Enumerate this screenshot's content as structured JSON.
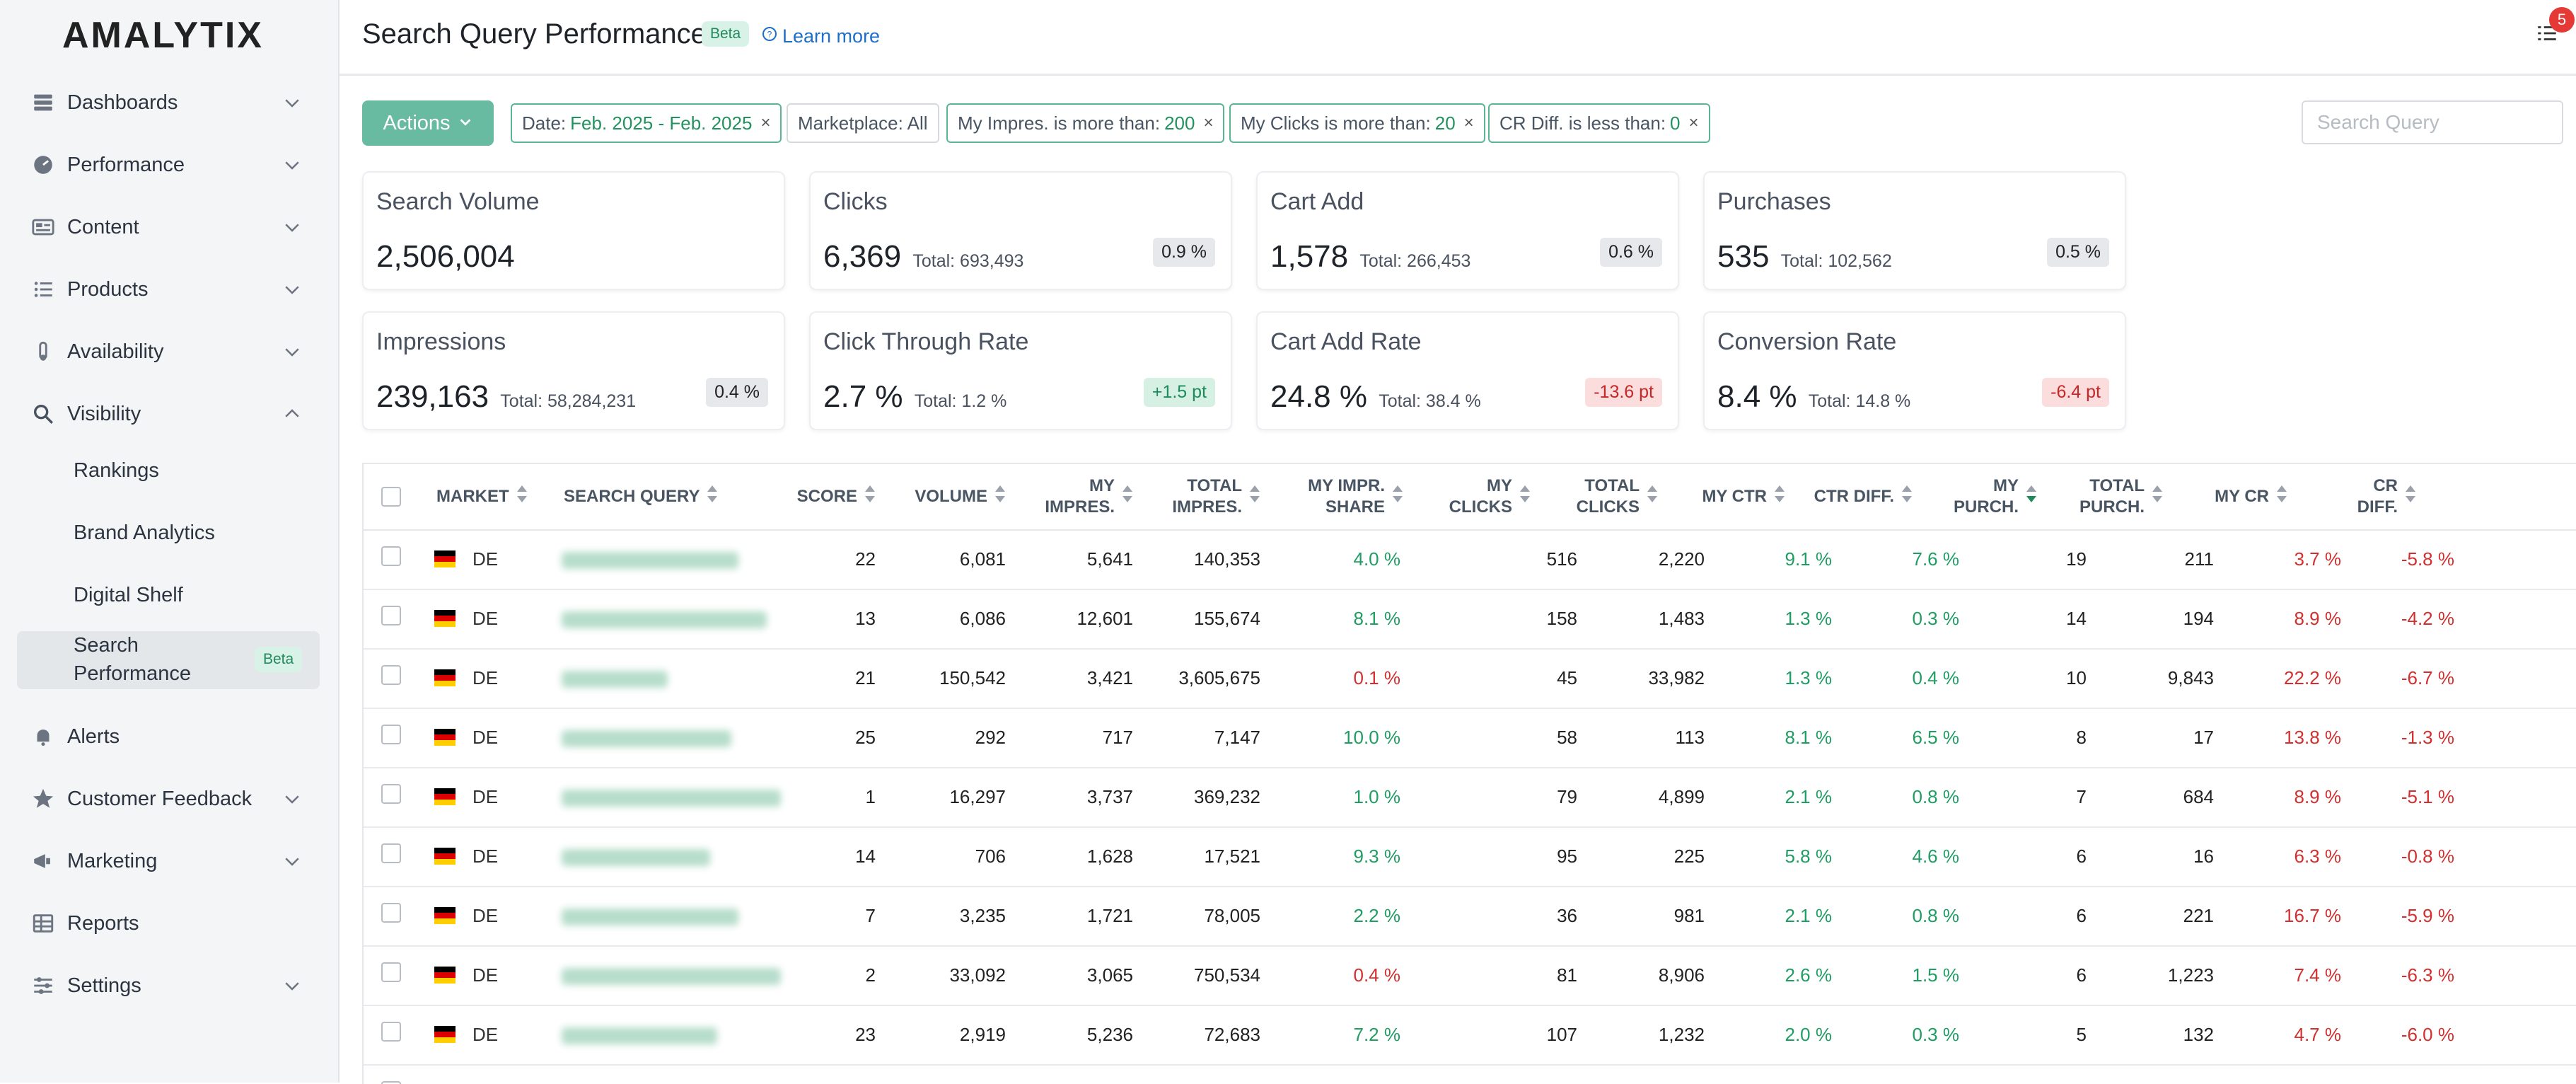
{
  "app": {
    "logo": "AMALYTIX"
  },
  "sidebar": {
    "items": [
      {
        "label": "Dashboards",
        "icon": "dashboard-icon"
      },
      {
        "label": "Performance",
        "icon": "performance-icon"
      },
      {
        "label": "Content",
        "icon": "content-icon"
      },
      {
        "label": "Products",
        "icon": "products-icon"
      },
      {
        "label": "Availability",
        "icon": "availability-icon"
      },
      {
        "label": "Visibility",
        "icon": "search-icon"
      },
      {
        "label": "Alerts",
        "icon": "bell-icon"
      },
      {
        "label": "Customer Feedback",
        "icon": "star-icon"
      },
      {
        "label": "Marketing",
        "icon": "megaphone-icon"
      },
      {
        "label": "Reports",
        "icon": "table-icon"
      },
      {
        "label": "Settings",
        "icon": "sliders-icon"
      }
    ],
    "visibility_sub": {
      "rankings": "Rankings",
      "brand_analytics": "Brand Analytics",
      "digital_shelf": "Digital Shelf",
      "search_performance_line1": "Search",
      "search_performance_line2": "Performance",
      "search_performance_badge": "Beta"
    }
  },
  "header": {
    "title": "Search Query Performance",
    "badge": "Beta",
    "learn_more": "Learn more",
    "notification_count": "5"
  },
  "filters": {
    "actions_label": "Actions",
    "date_label": "Date:",
    "date_value": "Feb. 2025 - Feb. 2025",
    "marketplace_label": "Marketplace: All",
    "impres_label": "My Impres. is more than:",
    "impres_value": "200",
    "clicks_label": "My Clicks is more than:",
    "clicks_value": "20",
    "cr_label": "CR Diff. is less than:",
    "cr_value": "0",
    "search_placeholder": "Search Query"
  },
  "kpis": {
    "search_volume": {
      "title": "Search Volume",
      "value": "2,506,004"
    },
    "clicks": {
      "title": "Clicks",
      "value": "6,369",
      "total": "Total: 693,493",
      "badge": "0.9 %"
    },
    "cart_add": {
      "title": "Cart Add",
      "value": "1,578",
      "total": "Total: 266,453",
      "badge": "0.6 %"
    },
    "purchases": {
      "title": "Purchases",
      "value": "535",
      "total": "Total: 102,562",
      "badge": "0.5 %"
    },
    "impressions": {
      "title": "Impressions",
      "value": "239,163",
      "total": "Total: 58,284,231",
      "badge": "0.4 %"
    },
    "ctr": {
      "title": "Click Through Rate",
      "value": "2.7 %",
      "total": "Total: 1.2 %",
      "badge": "+1.5 pt"
    },
    "cart_add_rate": {
      "title": "Cart Add Rate",
      "value": "24.8 %",
      "total": "Total: 38.4 %",
      "badge": "-13.6 pt"
    },
    "conversion_rate": {
      "title": "Conversion Rate",
      "value": "8.4 %",
      "total": "Total: 14.8 %",
      "badge": "-6.4 pt"
    }
  },
  "table": {
    "headers": {
      "market": "MARKET",
      "search_query": "SEARCH QUERY",
      "score": "SCORE",
      "volume": "VOLUME",
      "my_impres_1": "MY",
      "my_impres_2": "IMPRES.",
      "total_impres_1": "TOTAL",
      "total_impres_2": "IMPRES.",
      "impr_share_1": "MY IMPR.",
      "impr_share_2": "SHARE",
      "my_clicks_1": "MY",
      "my_clicks_2": "CLICKS",
      "total_clicks_1": "TOTAL",
      "total_clicks_2": "CLICKS",
      "my_ctr": "MY CTR",
      "ctr_diff": "CTR DIFF.",
      "my_purch_1": "MY",
      "my_purch_2": "PURCH.",
      "total_purch_1": "TOTAL",
      "total_purch_2": "PURCH.",
      "my_cr": "MY CR",
      "cr_diff_1": "CR",
      "cr_diff_2": "DIFF."
    },
    "rows": [
      {
        "market": "DE",
        "score": "22",
        "volume": "6,081",
        "my_impres": "5,641",
        "total_impres": "140,353",
        "impr_share": "4.0 %",
        "my_clicks": "516",
        "total_clicks": "2,220",
        "my_ctr": "9.1 %",
        "ctr_diff": "7.6 %",
        "my_purch": "19",
        "total_purch": "211",
        "my_cr": "3.7 %",
        "cr_diff": "-5.8 %"
      },
      {
        "market": "DE",
        "score": "13",
        "volume": "6,086",
        "my_impres": "12,601",
        "total_impres": "155,674",
        "impr_share": "8.1 %",
        "my_clicks": "158",
        "total_clicks": "1,483",
        "my_ctr": "1.3 %",
        "ctr_diff": "0.3 %",
        "my_purch": "14",
        "total_purch": "194",
        "my_cr": "8.9 %",
        "cr_diff": "-4.2 %"
      },
      {
        "market": "DE",
        "score": "21",
        "volume": "150,542",
        "my_impres": "3,421",
        "total_impres": "3,605,675",
        "impr_share": "0.1 %",
        "my_clicks": "45",
        "total_clicks": "33,982",
        "my_ctr": "1.3 %",
        "ctr_diff": "0.4 %",
        "my_purch": "10",
        "total_purch": "9,843",
        "my_cr": "22.2 %",
        "cr_diff": "-6.7 %"
      },
      {
        "market": "DE",
        "score": "25",
        "volume": "292",
        "my_impres": "717",
        "total_impres": "7,147",
        "impr_share": "10.0 %",
        "my_clicks": "58",
        "total_clicks": "113",
        "my_ctr": "8.1 %",
        "ctr_diff": "6.5 %",
        "my_purch": "8",
        "total_purch": "17",
        "my_cr": "13.8 %",
        "cr_diff": "-1.3 %"
      },
      {
        "market": "DE",
        "score": "1",
        "volume": "16,297",
        "my_impres": "3,737",
        "total_impres": "369,232",
        "impr_share": "1.0 %",
        "my_clicks": "79",
        "total_clicks": "4,899",
        "my_ctr": "2.1 %",
        "ctr_diff": "0.8 %",
        "my_purch": "7",
        "total_purch": "684",
        "my_cr": "8.9 %",
        "cr_diff": "-5.1 %"
      },
      {
        "market": "DE",
        "score": "14",
        "volume": "706",
        "my_impres": "1,628",
        "total_impres": "17,521",
        "impr_share": "9.3 %",
        "my_clicks": "95",
        "total_clicks": "225",
        "my_ctr": "5.8 %",
        "ctr_diff": "4.6 %",
        "my_purch": "6",
        "total_purch": "16",
        "my_cr": "6.3 %",
        "cr_diff": "-0.8 %"
      },
      {
        "market": "DE",
        "score": "7",
        "volume": "3,235",
        "my_impres": "1,721",
        "total_impres": "78,005",
        "impr_share": "2.2 %",
        "my_clicks": "36",
        "total_clicks": "981",
        "my_ctr": "2.1 %",
        "ctr_diff": "0.8 %",
        "my_purch": "6",
        "total_purch": "221",
        "my_cr": "16.7 %",
        "cr_diff": "-5.9 %"
      },
      {
        "market": "DE",
        "score": "2",
        "volume": "33,092",
        "my_impres": "3,065",
        "total_impres": "750,534",
        "impr_share": "0.4 %",
        "my_clicks": "81",
        "total_clicks": "8,906",
        "my_ctr": "2.6 %",
        "ctr_diff": "1.5 %",
        "my_purch": "6",
        "total_purch": "1,223",
        "my_cr": "7.4 %",
        "cr_diff": "-6.3 %"
      },
      {
        "market": "DE",
        "score": "23",
        "volume": "2,919",
        "my_impres": "5,236",
        "total_impres": "72,683",
        "impr_share": "7.2 %",
        "my_clicks": "107",
        "total_clicks": "1,232",
        "my_ctr": "2.0 %",
        "ctr_diff": "0.3 %",
        "my_purch": "5",
        "total_purch": "132",
        "my_cr": "4.7 %",
        "cr_diff": "-6.0 %"
      }
    ]
  },
  "colors": {
    "accent": "#68bba0",
    "positive": "#1f9d63",
    "negative": "#d32f2f",
    "flag": [
      "#000000",
      "#dd0000",
      "#ffce00"
    ]
  }
}
